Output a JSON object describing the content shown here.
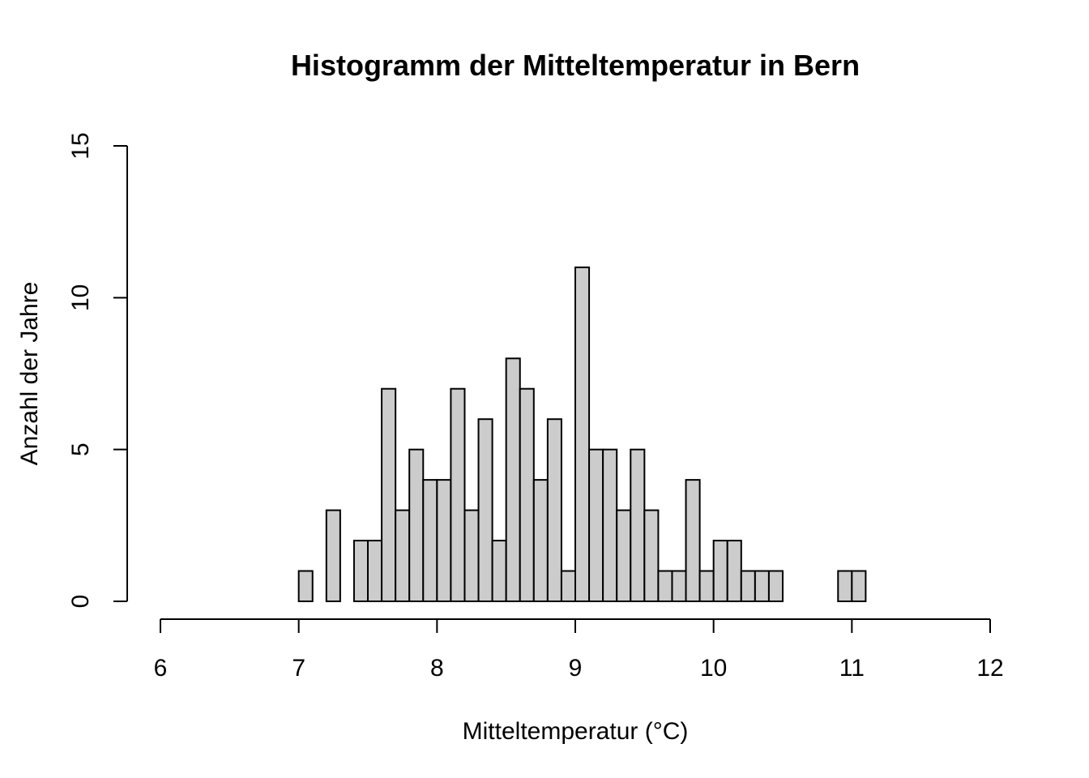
{
  "chart_data": {
    "type": "bar",
    "title": "Histogramm der Mitteltemperatur in Bern",
    "xlabel": "Mitteltemperatur (°C)",
    "ylabel": "Anzahl der Jahre",
    "xlim": [
      6,
      12
    ],
    "ylim": [
      0,
      15
    ],
    "x_ticks": [
      "6",
      "7",
      "8",
      "9",
      "10",
      "11",
      "12"
    ],
    "y_ticks": [
      "0",
      "5",
      "10",
      "15"
    ],
    "bin_width": 0.1,
    "bin_start": 7.0,
    "counts": [
      1,
      0,
      3,
      0,
      2,
      2,
      7,
      3,
      5,
      4,
      4,
      7,
      3,
      6,
      2,
      8,
      7,
      4,
      6,
      1,
      11,
      5,
      5,
      3,
      5,
      3,
      1,
      1,
      4,
      1,
      2,
      2,
      1,
      1,
      1,
      0,
      0,
      0,
      0,
      1,
      1
    ],
    "grid": false,
    "bar_color": "#cccccc",
    "edge_color": "#000000"
  }
}
